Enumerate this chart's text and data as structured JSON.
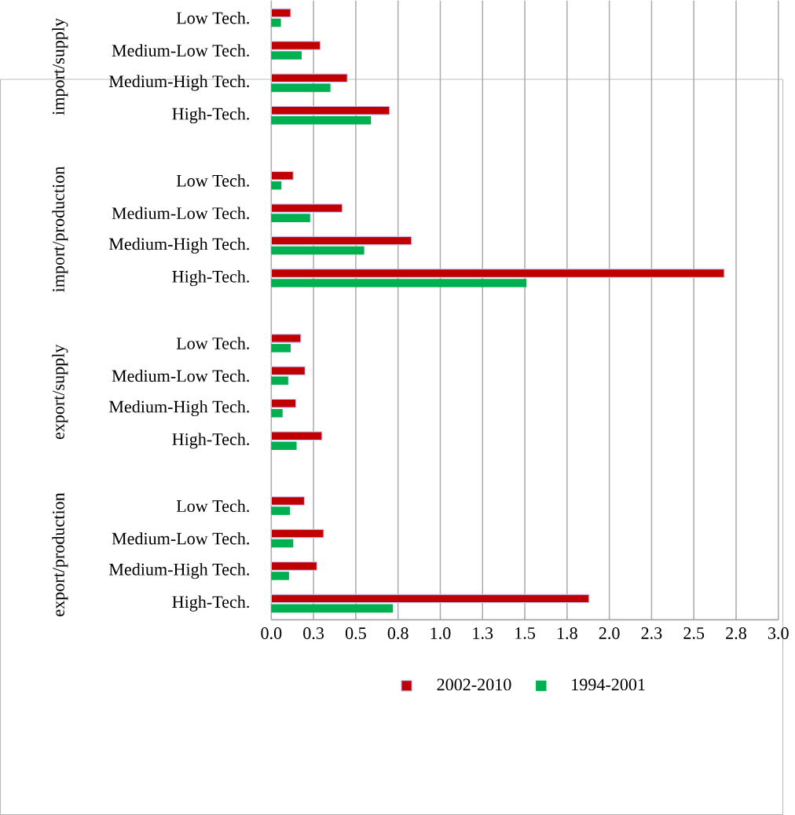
{
  "chart_data": {
    "type": "bar",
    "orientation": "horizontal",
    "categories": [
      "Low Tech.",
      "Medium-Low Tech.",
      "Medium-High Tech.",
      "High-Tech.",
      "Low Tech.",
      "Medium-Low Tech.",
      "Medium-High Tech.",
      "High-Tech.",
      "Low Tech.",
      "Medium-Low Tech.",
      "Medium-High Tech.",
      "High-Tech.",
      "Low Tech.",
      "Medium-Low Tech.",
      "Medium-High Tech.",
      "High-Tech."
    ],
    "annotations": [
      "import/supply",
      "import/production",
      "export/supply",
      "export/production"
    ],
    "series": [
      {
        "name": "2002-2010",
        "color": "#c00000",
        "values": [
          0.115,
          0.29,
          0.45,
          0.7,
          0.13,
          0.42,
          0.83,
          2.68,
          0.175,
          0.2,
          0.146,
          0.3,
          0.196,
          0.31,
          0.27,
          1.88
        ]
      },
      {
        "name": "1994-2001",
        "color": "#00b050",
        "values": [
          0.057,
          0.18,
          0.35,
          0.59,
          0.06,
          0.23,
          0.55,
          1.51,
          0.115,
          0.1,
          0.067,
          0.15,
          0.11,
          0.13,
          0.105,
          0.72
        ]
      }
    ],
    "xlim": [
      0,
      3.0
    ],
    "xticks": [
      {
        "value": 0,
        "label": "0.0"
      },
      {
        "value": 0.25,
        "label": "0.3"
      },
      {
        "value": 0.5,
        "label": "0.5"
      },
      {
        "value": 0.75,
        "label": "0.8"
      },
      {
        "value": 1.0,
        "label": "1.0"
      },
      {
        "value": 1.25,
        "label": "1.3"
      },
      {
        "value": 1.5,
        "label": "1.5"
      },
      {
        "value": 1.75,
        "label": "1.8"
      },
      {
        "value": 2.0,
        "label": "2.0"
      },
      {
        "value": 2.25,
        "label": "2.3"
      },
      {
        "value": 2.5,
        "label": "2.5"
      },
      {
        "value": 2.75,
        "label": "2.8"
      },
      {
        "value": 3.0,
        "label": "3.0"
      }
    ],
    "grid": "x",
    "legend": "bottom"
  }
}
